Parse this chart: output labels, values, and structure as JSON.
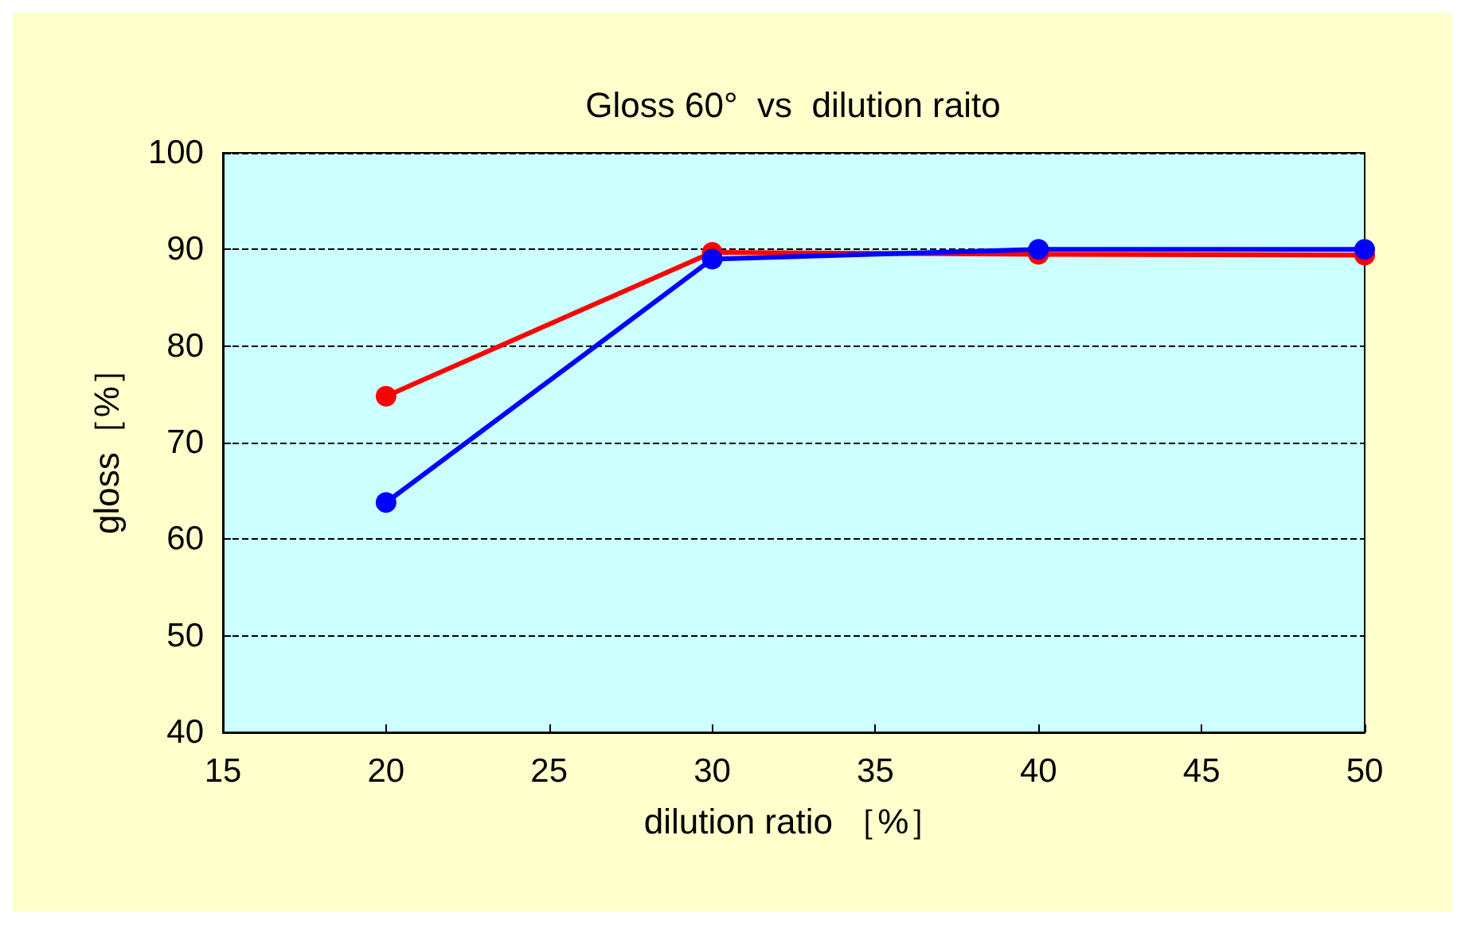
{
  "chart_data": {
    "type": "line",
    "title": "Gloss 60°  vs  dilution raito",
    "xlabel": "dilution ratio ［%］",
    "ylabel": "gloss［%］",
    "x": [
      20,
      30,
      40,
      50
    ],
    "series": [
      {
        "color": "#ff0000",
        "values": [
          74.8,
          89.7,
          89.5,
          89.4
        ]
      },
      {
        "color": "#0000ff",
        "values": [
          63.8,
          89.0,
          90.0,
          90.0
        ]
      }
    ],
    "xlim": [
      15,
      50
    ],
    "xticks": [
      15,
      20,
      25,
      30,
      35,
      40,
      45,
      50
    ],
    "ylim": [
      40,
      100
    ],
    "yticks": [
      40,
      50,
      60,
      70,
      80,
      90,
      100
    ],
    "grid": "y",
    "marker": "circle",
    "line_style": "solid"
  }
}
